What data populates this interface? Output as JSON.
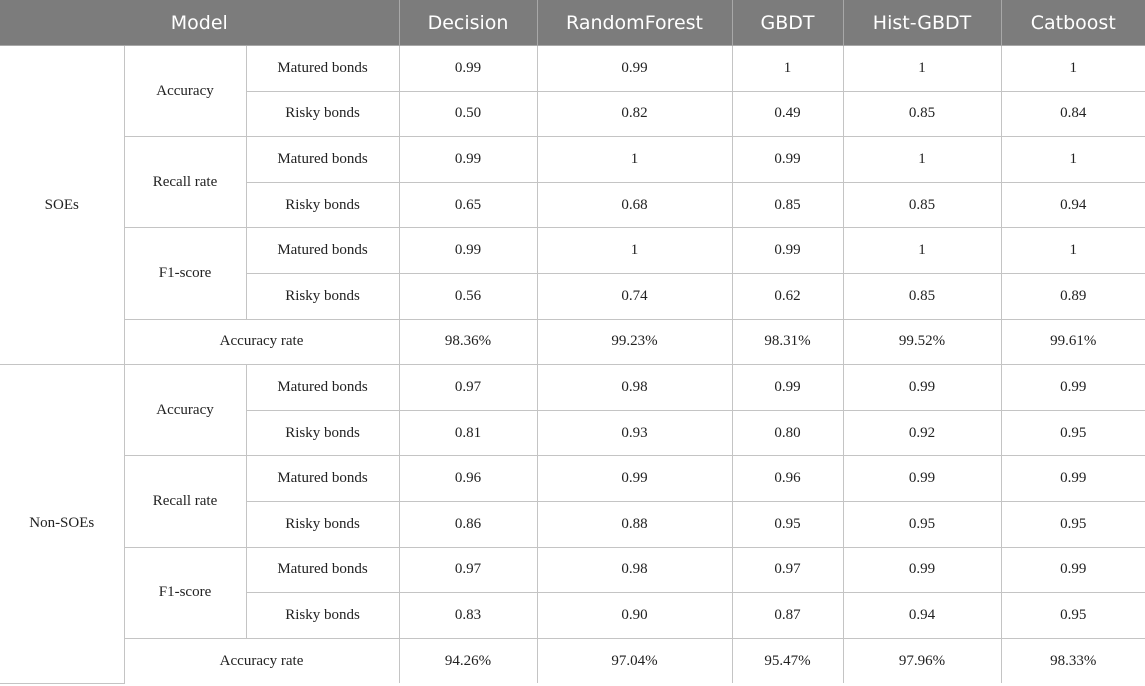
{
  "header": {
    "model": "Model",
    "columns": [
      "Decision",
      "RandomForest",
      "GBDT",
      "Hist-GBDT",
      "Catboost"
    ]
  },
  "groups": [
    {
      "name": "SOEs",
      "metrics": [
        {
          "name": "Accuracy",
          "rows": [
            {
              "label": "Matured bonds",
              "values": [
                "0.99",
                "0.99",
                "1",
                "1",
                "1"
              ]
            },
            {
              "label": "Risky bonds",
              "values": [
                "0.50",
                "0.82",
                "0.49",
                "0.85",
                "0.84"
              ]
            }
          ]
        },
        {
          "name": "Recall rate",
          "rows": [
            {
              "label": "Matured bonds",
              "values": [
                "0.99",
                "1",
                "0.99",
                "1",
                "1"
              ]
            },
            {
              "label": "Risky bonds",
              "values": [
                "0.65",
                "0.68",
                "0.85",
                "0.85",
                "0.94"
              ]
            }
          ]
        },
        {
          "name": "F1-score",
          "rows": [
            {
              "label": "Matured bonds",
              "values": [
                "0.99",
                "1",
                "0.99",
                "1",
                "1"
              ]
            },
            {
              "label": "Risky bonds",
              "values": [
                "0.56",
                "0.74",
                "0.62",
                "0.85",
                "0.89"
              ]
            }
          ]
        }
      ],
      "accuracy_rate": {
        "label": "Accuracy rate",
        "values": [
          "98.36%",
          "99.23%",
          "98.31%",
          "99.52%",
          "99.61%"
        ]
      }
    },
    {
      "name": "Non-SOEs",
      "metrics": [
        {
          "name": "Accuracy",
          "rows": [
            {
              "label": "Matured bonds",
              "values": [
                "0.97",
                "0.98",
                "0.99",
                "0.99",
                "0.99"
              ]
            },
            {
              "label": "Risky bonds",
              "values": [
                "0.81",
                "0.93",
                "0.80",
                "0.92",
                "0.95"
              ]
            }
          ]
        },
        {
          "name": "Recall rate",
          "rows": [
            {
              "label": "Matured bonds",
              "values": [
                "0.96",
                "0.99",
                "0.96",
                "0.99",
                "0.99"
              ]
            },
            {
              "label": "Risky bonds",
              "values": [
                "0.86",
                "0.88",
                "0.95",
                "0.95",
                "0.95"
              ]
            }
          ]
        },
        {
          "name": "F1-score",
          "rows": [
            {
              "label": "Matured bonds",
              "values": [
                "0.97",
                "0.98",
                "0.97",
                "0.99",
                "0.99"
              ]
            },
            {
              "label": "Risky bonds",
              "values": [
                "0.83",
                "0.90",
                "0.87",
                "0.94",
                "0.95"
              ]
            }
          ]
        }
      ],
      "accuracy_rate": {
        "label": "Accuracy rate",
        "values": [
          "94.26%",
          "97.04%",
          "95.47%",
          "97.96%",
          "98.33%"
        ]
      }
    }
  ]
}
